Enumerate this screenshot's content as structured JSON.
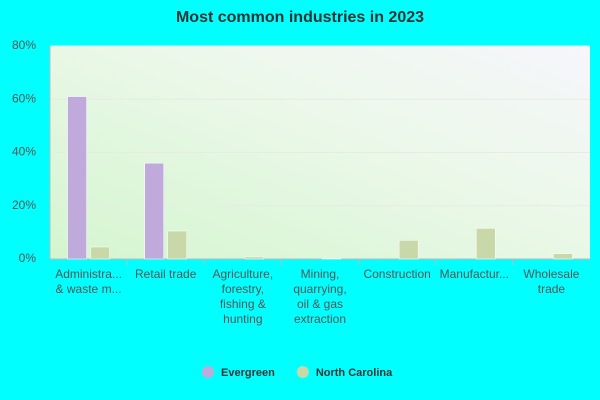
{
  "chart_data": {
    "type": "bar",
    "title": "Most common industries in 2023",
    "categories": [
      "Administra...\n& waste m...",
      "Retail trade",
      "Agriculture,\nforestry,\nfishing &\nhunting",
      "Mining,\nquarrying,\noil & gas\nextraction",
      "Construction",
      "Manufactur...",
      "Wholesale\ntrade"
    ],
    "series": [
      {
        "name": "Evergreen",
        "color": "#c0aadc",
        "values": [
          61,
          36,
          0,
          0,
          0,
          0,
          0
        ]
      },
      {
        "name": "North Carolina",
        "color": "#c8d8a8",
        "values": [
          4.5,
          10.5,
          0.8,
          0.1,
          7,
          11.5,
          2
        ]
      }
    ],
    "ylim": [
      0,
      80
    ],
    "yticks": [
      {
        "value": 0,
        "label": "0%"
      },
      {
        "value": 20,
        "label": "20%"
      },
      {
        "value": 40,
        "label": "40%"
      },
      {
        "value": 60,
        "label": "60%"
      },
      {
        "value": 80,
        "label": "80%"
      }
    ],
    "grid": true
  }
}
